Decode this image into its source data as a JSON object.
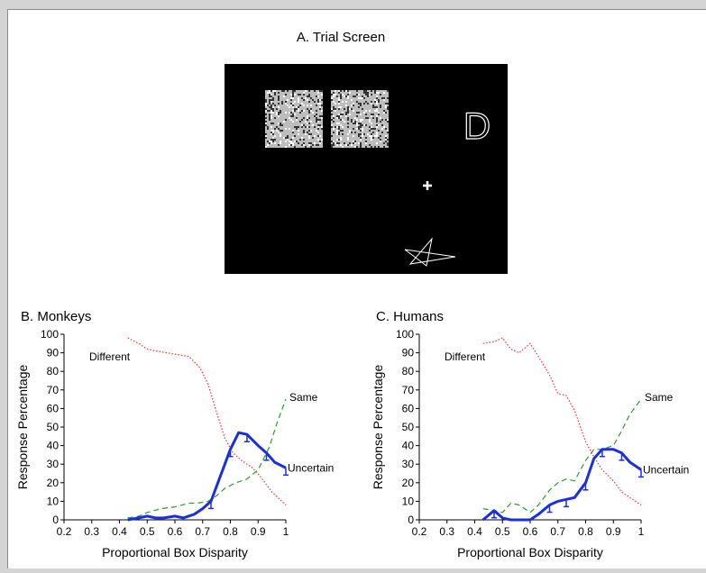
{
  "panel_a": {
    "title": "A. Trial Screen",
    "symbol_d": "D",
    "icons": [
      "noise-box-icon",
      "noise-box-icon",
      "d-letter-icon",
      "cursor-cross-icon",
      "star-icon"
    ],
    "colors": {
      "screen": "#000000",
      "symbols": "#ffffff"
    }
  },
  "colors": {
    "different": "#ff2a2a",
    "same": "#2f9a2f",
    "uncertain": "#1a2fe0"
  },
  "chart_data": [
    {
      "type": "line",
      "title": "B. Monkeys",
      "xlabel": "Proportional Box Disparity",
      "ylabel": "Response Percentage",
      "xlim": [
        0.2,
        1
      ],
      "ylim": [
        0,
        100
      ],
      "xticks": [
        "0.2",
        "0.3",
        "0.4",
        "0.5",
        "0.6",
        "0.7",
        "0.8",
        "0.9",
        "1"
      ],
      "yticks": [
        "0",
        "10",
        "20",
        "30",
        "40",
        "50",
        "60",
        "70",
        "80",
        "90",
        "100"
      ],
      "series": [
        {
          "name": "Different",
          "style": "dotted",
          "x": [
            0.43,
            0.47,
            0.5,
            0.53,
            0.57,
            0.61,
            0.65,
            0.69,
            0.72,
            0.75,
            0.78,
            0.81,
            0.84,
            0.88,
            0.91,
            0.95,
            1.0
          ],
          "y": [
            98,
            95,
            92,
            91,
            90,
            89,
            88,
            82,
            73,
            58,
            44,
            36,
            32,
            28,
            23,
            15,
            8
          ]
        },
        {
          "name": "Same",
          "style": "dashed",
          "x": [
            0.43,
            0.47,
            0.5,
            0.55,
            0.6,
            0.65,
            0.68,
            0.72,
            0.75,
            0.78,
            0.82,
            0.86,
            0.9,
            0.94,
            0.97,
            1.0
          ],
          "y": [
            1,
            2,
            4,
            6,
            7,
            9,
            9,
            10,
            13,
            17,
            20,
            22,
            27,
            39,
            53,
            65
          ]
        },
        {
          "name": "Uncertain",
          "style": "solid",
          "x": [
            0.43,
            0.47,
            0.5,
            0.53,
            0.56,
            0.6,
            0.63,
            0.67,
            0.7,
            0.73,
            0.76,
            0.8,
            0.83,
            0.86,
            0.9,
            0.93,
            0.96,
            1.0
          ],
          "y": [
            0,
            1,
            2,
            1,
            1,
            2,
            1,
            3,
            6,
            10,
            22,
            38,
            47,
            46,
            40,
            36,
            31,
            28
          ]
        }
      ]
    },
    {
      "type": "line",
      "title": "C. Humans",
      "xlabel": "Proportional Box Disparity",
      "ylabel": "Response Percentage",
      "xlim": [
        0.2,
        1
      ],
      "ylim": [
        0,
        100
      ],
      "xticks": [
        "0.2",
        "0.3",
        "0.4",
        "0.5",
        "0.6",
        "0.7",
        "0.8",
        "0.9",
        "1"
      ],
      "yticks": [
        "0",
        "10",
        "20",
        "30",
        "40",
        "50",
        "60",
        "70",
        "80",
        "90",
        "100"
      ],
      "series": [
        {
          "name": "Different",
          "style": "dotted",
          "x": [
            0.43,
            0.47,
            0.5,
            0.53,
            0.56,
            0.6,
            0.63,
            0.67,
            0.7,
            0.73,
            0.76,
            0.8,
            0.83,
            0.86,
            0.9,
            0.93,
            0.96,
            1.0
          ],
          "y": [
            95,
            96,
            98,
            92,
            90,
            95,
            88,
            78,
            68,
            67,
            59,
            42,
            34,
            27,
            21,
            15,
            12,
            8
          ]
        },
        {
          "name": "Same",
          "style": "dashed",
          "x": [
            0.43,
            0.47,
            0.5,
            0.53,
            0.56,
            0.6,
            0.63,
            0.67,
            0.7,
            0.73,
            0.76,
            0.8,
            0.83,
            0.86,
            0.9,
            0.93,
            0.96,
            1.0
          ],
          "y": [
            6,
            5,
            4,
            9,
            8,
            4,
            8,
            16,
            20,
            22,
            21,
            32,
            38,
            38,
            40,
            48,
            57,
            65
          ]
        },
        {
          "name": "Uncertain",
          "style": "solid",
          "x": [
            0.43,
            0.47,
            0.5,
            0.53,
            0.56,
            0.6,
            0.63,
            0.67,
            0.7,
            0.73,
            0.76,
            0.8,
            0.83,
            0.86,
            0.9,
            0.93,
            0.96,
            1.0
          ],
          "y": [
            0,
            5,
            1,
            0,
            0,
            0,
            3,
            8,
            10,
            11,
            12,
            20,
            33,
            38,
            38,
            36,
            31,
            27
          ]
        }
      ]
    }
  ]
}
